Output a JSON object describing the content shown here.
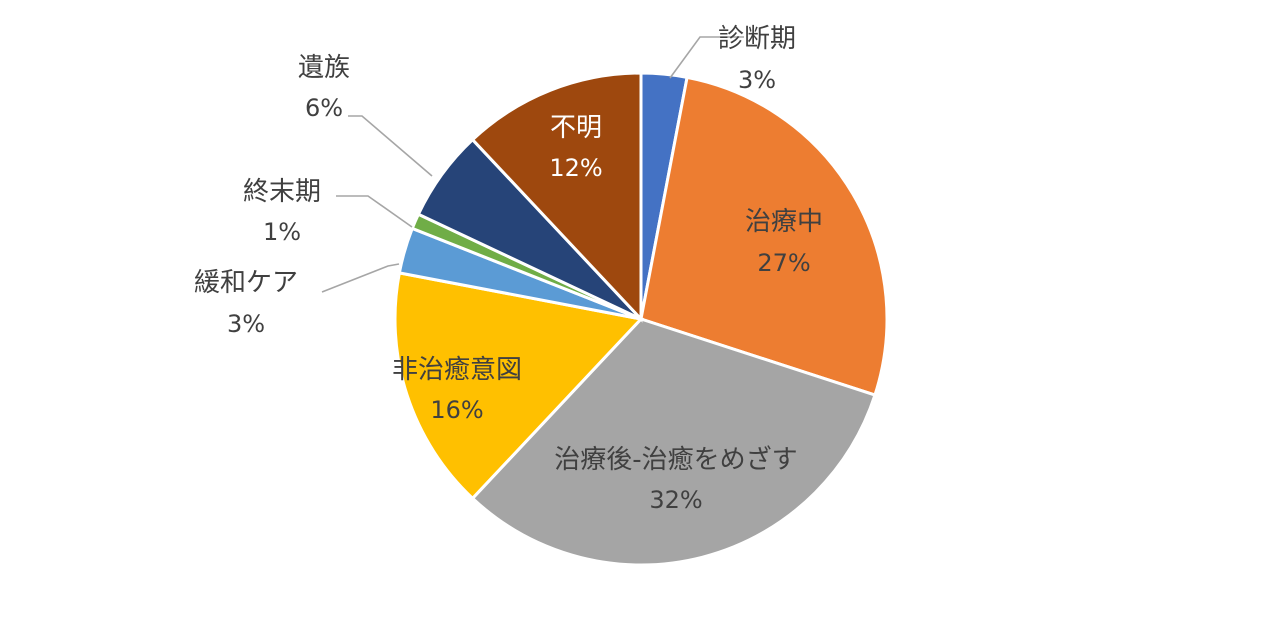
{
  "chart_data": {
    "type": "pie",
    "title": "",
    "slices": [
      {
        "name": "診断期",
        "value": 3,
        "label": "3%",
        "color": "#4472c4",
        "label_text_color": "#404040",
        "label_placement": "outside"
      },
      {
        "name": "治療中",
        "value": 27,
        "label": "27%",
        "color": "#ed7d31",
        "label_text_color": "#404040",
        "label_placement": "inside"
      },
      {
        "name": "治療後-治癒をめざす",
        "value": 32,
        "label": "32%",
        "color": "#a5a5a5",
        "label_text_color": "#404040",
        "label_placement": "inside"
      },
      {
        "name": "非治癒意図",
        "value": 16,
        "label": "16%",
        "color": "#ffc000",
        "label_text_color": "#404040",
        "label_placement": "inside"
      },
      {
        "name": "緩和ケア",
        "value": 3,
        "label": "3%",
        "color": "#5b9bd5",
        "label_text_color": "#404040",
        "label_placement": "outside"
      },
      {
        "name": "終末期",
        "value": 1,
        "label": "1%",
        "color": "#70ad47",
        "label_text_color": "#404040",
        "label_placement": "outside"
      },
      {
        "name": "遺族",
        "value": 6,
        "label": "6%",
        "color": "#264478",
        "label_text_color": "#404040",
        "label_placement": "outside"
      },
      {
        "name": "不明",
        "value": 12,
        "label": "12%",
        "color": "#9e480e",
        "label_text_color": "#ffffff",
        "label_placement": "inside"
      }
    ],
    "start_angle": "12 o'clock",
    "direction": "clockwise",
    "legend": "none",
    "data_labels": "category name and percentage",
    "leader_line_color": "#a6a6a6"
  }
}
